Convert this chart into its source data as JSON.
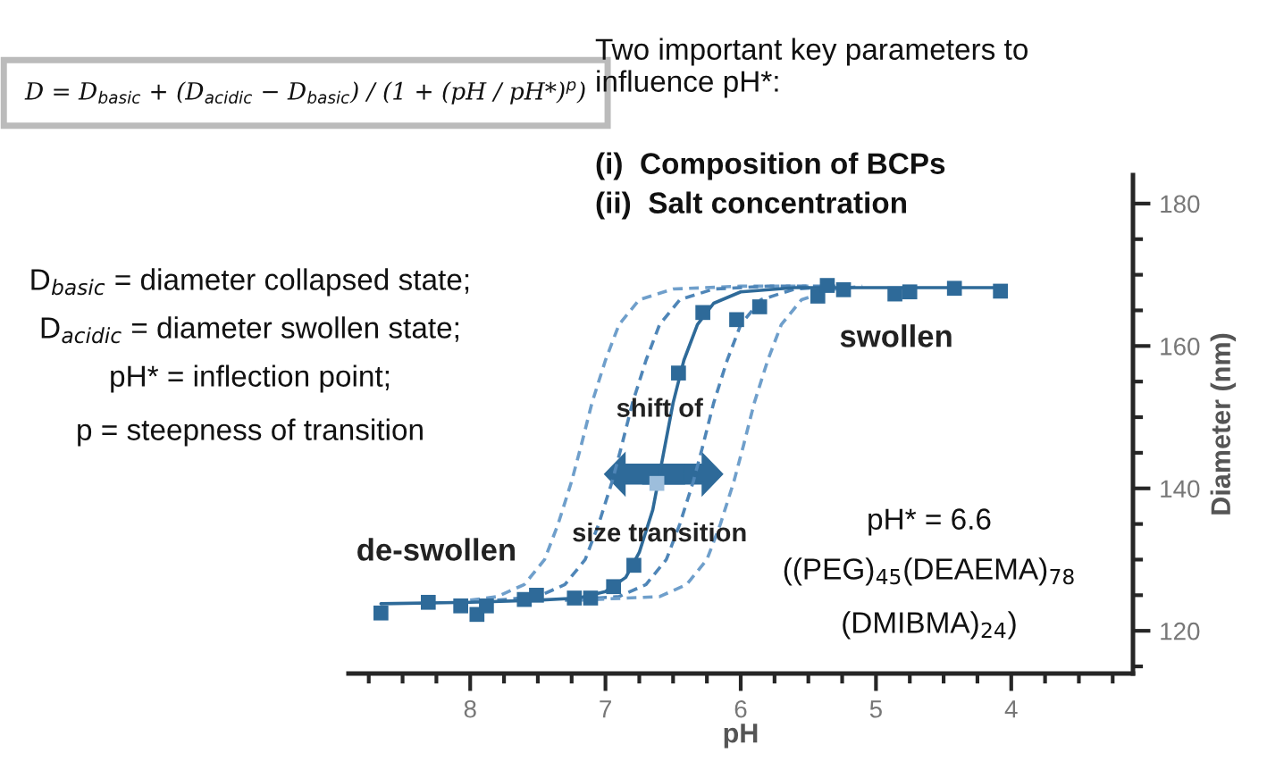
{
  "chart_data": {
    "type": "scatter",
    "xlabel": "pH",
    "y2label": "Diameter (nm)",
    "xlim": [
      8.9,
      3.1
    ],
    "ylim": [
      114,
      184
    ],
    "xticks": [
      {
        "value": 8.75,
        "label": null
      },
      {
        "value": 8.5,
        "label": null
      },
      {
        "value": 8.25,
        "label": null
      },
      8,
      {
        "value": 7.75,
        "label": null
      },
      {
        "value": 7.5,
        "label": null
      },
      {
        "value": 7.25,
        "label": null
      },
      7,
      {
        "value": 6.75,
        "label": null
      },
      {
        "value": 6.5,
        "label": null
      },
      {
        "value": 6.25,
        "label": null
      },
      6,
      {
        "value": 5.75,
        "label": null
      },
      {
        "value": 5.5,
        "label": null
      },
      {
        "value": 5.25,
        "label": null
      },
      5,
      {
        "value": 4.75,
        "label": null
      },
      {
        "value": 4.5,
        "label": null
      },
      {
        "value": 4.25,
        "label": null
      },
      4,
      {
        "value": 3.75,
        "label": null
      },
      {
        "value": 3.5,
        "label": null
      },
      {
        "value": 3.25,
        "label": null
      }
    ],
    "yticks": [
      {
        "value": 115,
        "label": null
      },
      120,
      {
        "value": 125,
        "label": null
      },
      {
        "value": 130,
        "label": null
      },
      {
        "value": 135,
        "label": null
      },
      140,
      {
        "value": 145,
        "label": null
      },
      {
        "value": 150,
        "label": null
      },
      {
        "value": 155,
        "label": null
      },
      160,
      {
        "value": 165,
        "label": null
      },
      {
        "value": 170,
        "label": null
      },
      {
        "value": 175,
        "label": null
      },
      180
    ],
    "grid": false,
    "legend": false,
    "series": [
      {
        "type": "line",
        "line_style": "dashed",
        "color": "#6f9fcb",
        "x": [
          8.0,
          7.8,
          7.6,
          7.45,
          7.35,
          7.25,
          7.18,
          7.1,
          7.0,
          6.9,
          6.75,
          6.5,
          6.0,
          5.5
        ],
        "values": [
          124.3,
          124.8,
          126.5,
          130,
          135,
          141,
          146,
          152,
          158,
          163,
          166.5,
          168,
          168.4,
          168.4
        ]
      },
      {
        "type": "line",
        "line_style": "dashed",
        "color": "#4f86b8",
        "x": [
          7.8,
          7.5,
          7.3,
          7.15,
          7.05,
          6.95,
          6.88,
          6.8,
          6.7,
          6.6,
          6.45,
          6.2,
          5.8,
          5.4
        ],
        "values": [
          124.3,
          124.8,
          126.5,
          130,
          135,
          141,
          146,
          152,
          158,
          163,
          166.5,
          168,
          168.4,
          168.4
        ]
      },
      {
        "type": "line",
        "line_style": "dashed",
        "color": "#4f86b8",
        "x": [
          7.3,
          6.9,
          6.7,
          6.55,
          6.45,
          6.35,
          6.28,
          6.2,
          6.1,
          6.0,
          5.85,
          5.6,
          5.3
        ],
        "values": [
          124.3,
          124.8,
          126.5,
          130,
          135,
          141,
          146,
          152,
          158,
          163,
          166.5,
          168,
          168.4
        ]
      },
      {
        "type": "line",
        "line_style": "dashed",
        "color": "#6f9fcb",
        "x": [
          7.2,
          6.6,
          6.4,
          6.25,
          6.15,
          6.05,
          5.98,
          5.9,
          5.8,
          5.7,
          5.55,
          5.3,
          5.1
        ],
        "values": [
          124.3,
          124.8,
          126.5,
          130,
          135,
          141,
          146,
          152,
          158,
          163,
          166.5,
          168,
          168.4
        ]
      },
      {
        "type": "line",
        "line_style": "solid",
        "color": "#2e6a99",
        "x": [
          8.66,
          8.0,
          7.5,
          7.2,
          7.0,
          6.85,
          6.75,
          6.65,
          6.58,
          6.5,
          6.42,
          6.32,
          6.2,
          6.0,
          5.6,
          5.0,
          4.08
        ],
        "values": [
          123.8,
          124.0,
          124.3,
          124.6,
          125.5,
          127.5,
          131,
          137,
          144,
          152,
          158,
          163,
          166,
          167.6,
          168.2,
          168.2,
          168.2
        ]
      },
      {
        "marker": "square",
        "color": "#2e6a99",
        "colors": [
          "#2e6a99",
          "#2e6a99",
          "#2e6a99",
          "#2e6a99",
          "#2e6a99",
          "#2e6a99",
          "#2e6a99",
          "#2e6a99",
          "#2e6a99",
          "#2e6a99",
          "#2e6a99",
          "#9dbedc",
          "#2e6a99",
          "#2e6a99",
          "#2e6a99",
          "#2e6a99",
          "#2e6a99",
          "#2e6a99",
          "#2e6a99",
          "#2e6a99",
          "#2e6a99",
          "#2e6a99",
          "#2e6a99"
        ],
        "x": [
          8.66,
          8.31,
          8.07,
          7.95,
          7.88,
          7.6,
          7.51,
          7.23,
          7.11,
          6.94,
          6.79,
          6.62,
          6.46,
          6.28,
          6.03,
          5.86,
          5.43,
          5.36,
          5.24,
          4.86,
          4.75,
          4.42,
          4.08
        ],
        "values": [
          122.5,
          124.0,
          123.5,
          122.3,
          123.5,
          124.4,
          125.0,
          124.6,
          124.6,
          126.2,
          129.2,
          140.7,
          156.2,
          164.7,
          163.7,
          165.5,
          167.0,
          168.5,
          167.9,
          167.3,
          167.6,
          168.1,
          167.7
        ]
      }
    ],
    "annotations": [
      "D = D$_{basic}$ + (D$_{acidic}$ − D$_{basic}$) / (1 + (pH / pH*)$^{p}$)",
      "Two important key parameters to\ninfluence pH*:",
      "(i)  Composition of BCPs",
      "(ii)  Salt concentration",
      "D$_{basic}$ = diameter collapsed state;",
      "D$_{acidic}$ = diameter swollen state;",
      "pH* = inflection point;",
      "p = steepness of transition",
      "shift of",
      "size transition",
      "de-swollen",
      "swollen",
      "pH* = 6.6",
      "((PEG)$_{45}$(DEAEMA)$_{78}$",
      "(DMIBMA)$_{24}$)"
    ]
  }
}
